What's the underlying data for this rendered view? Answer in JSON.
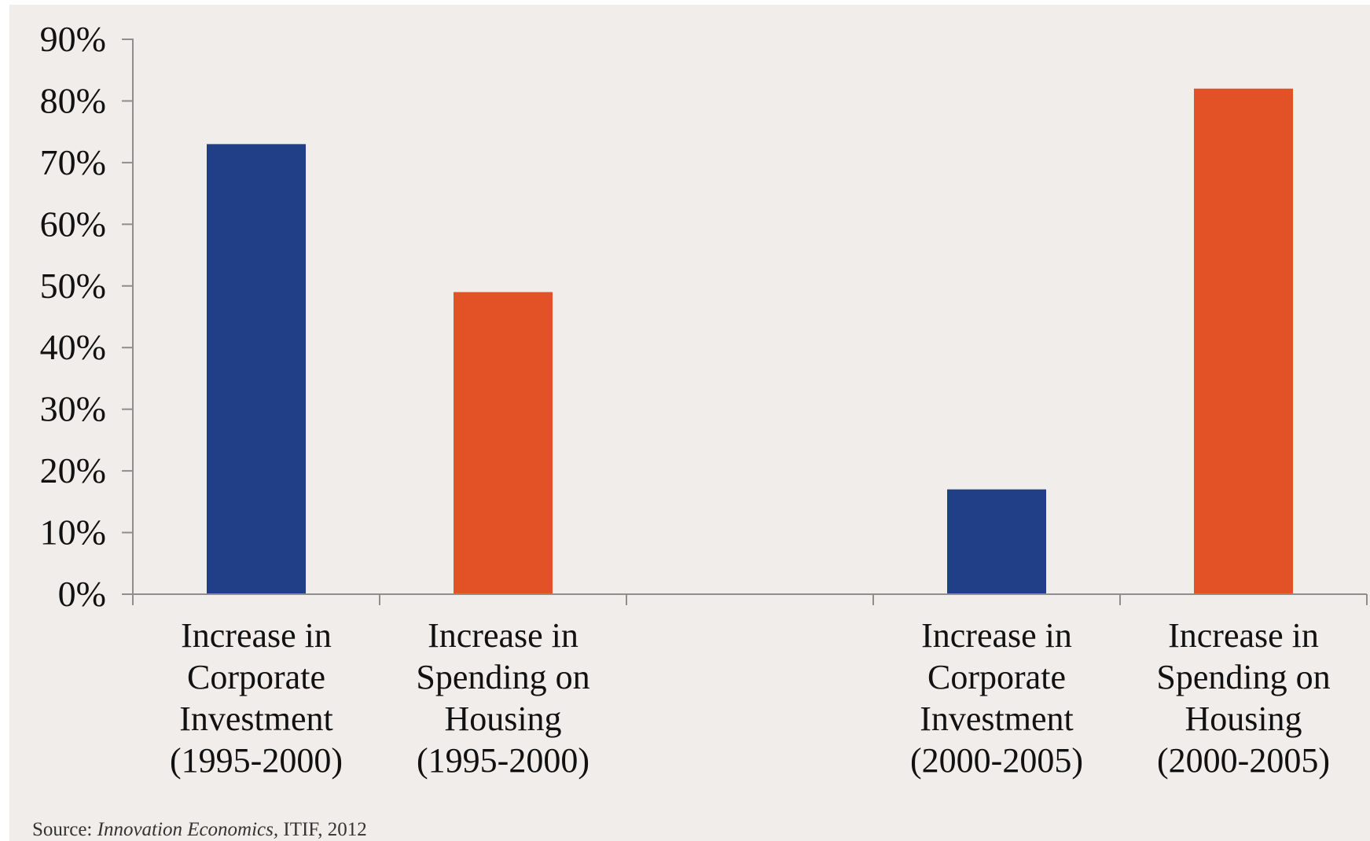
{
  "chart_data": {
    "type": "bar",
    "title": "",
    "xlabel": "",
    "ylabel": "",
    "ylim": [
      0,
      90
    ],
    "yticks": [
      0,
      10,
      20,
      30,
      40,
      50,
      60,
      70,
      80,
      90
    ],
    "ytick_format": "{v}%",
    "grid": false,
    "legend": "none",
    "slots": 5,
    "categories": [
      {
        "label_lines": [
          "Increase in",
          "Corporate",
          "Investment",
          "(1995-2000)"
        ],
        "value": 73,
        "color": "#213f86",
        "slot": 0
      },
      {
        "label_lines": [
          "Increase in",
          "Spending on",
          "Housing",
          "(1995-2000)"
        ],
        "value": 49,
        "color": "#e35126",
        "slot": 1
      },
      {
        "label_lines": [
          "Increase in",
          "Corporate",
          "Investment",
          "(2000-2005)"
        ],
        "value": 17,
        "color": "#213f86",
        "slot": 3
      },
      {
        "label_lines": [
          "Increase in",
          "Spending on",
          "Housing",
          "(2000-2005)"
        ],
        "value": 82,
        "color": "#e35126",
        "slot": 4
      }
    ]
  },
  "source": {
    "prefix": "Source: ",
    "work": "Innovation Economics,",
    "rest": " ITIF, 2012"
  }
}
